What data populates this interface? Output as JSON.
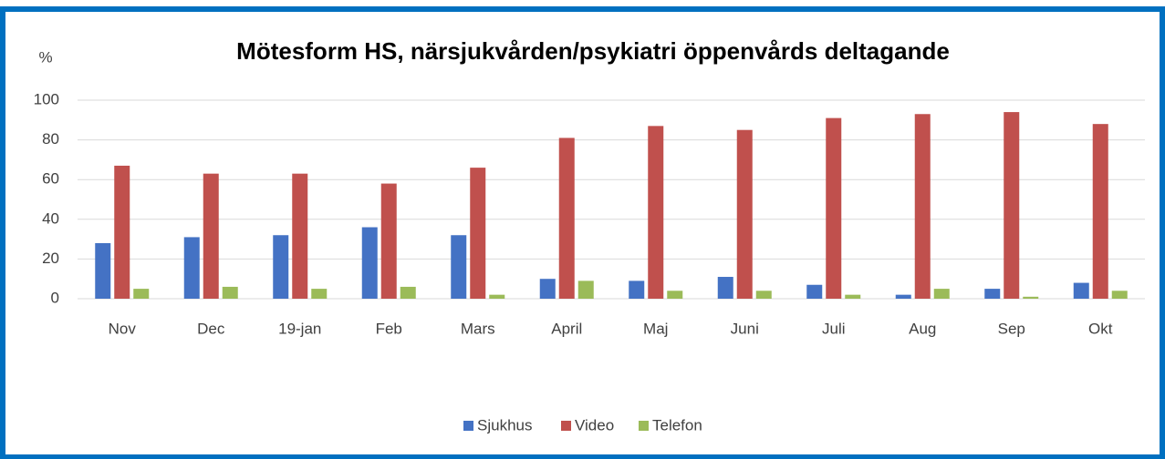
{
  "chart_data": {
    "type": "bar",
    "title": "Mötesform HS, närsjukvården/psykiatri öppenvårds deltagande",
    "y_label": "%",
    "categories": [
      "Nov",
      "Dec",
      "19-jan",
      "Feb",
      "Mars",
      "April",
      "Maj",
      "Juni",
      "Juli",
      "Aug",
      "Sep",
      "Okt"
    ],
    "series": [
      {
        "name": "Sjukhus",
        "color": "#4472c4",
        "values": [
          28,
          31,
          32,
          36,
          32,
          10,
          9,
          11,
          7,
          2,
          5,
          8
        ]
      },
      {
        "name": "Video",
        "color": "#c0504d",
        "values": [
          67,
          63,
          63,
          58,
          66,
          81,
          87,
          85,
          91,
          93,
          94,
          88
        ]
      },
      {
        "name": "Telefon",
        "color": "#9bbb59",
        "values": [
          5,
          6,
          5,
          6,
          2,
          9,
          4,
          4,
          2,
          5,
          1,
          4
        ]
      }
    ],
    "ylim": [
      0,
      100
    ],
    "yticks": [
      0,
      20,
      40,
      60,
      80,
      100
    ],
    "grid": true,
    "legend": "bottom"
  }
}
